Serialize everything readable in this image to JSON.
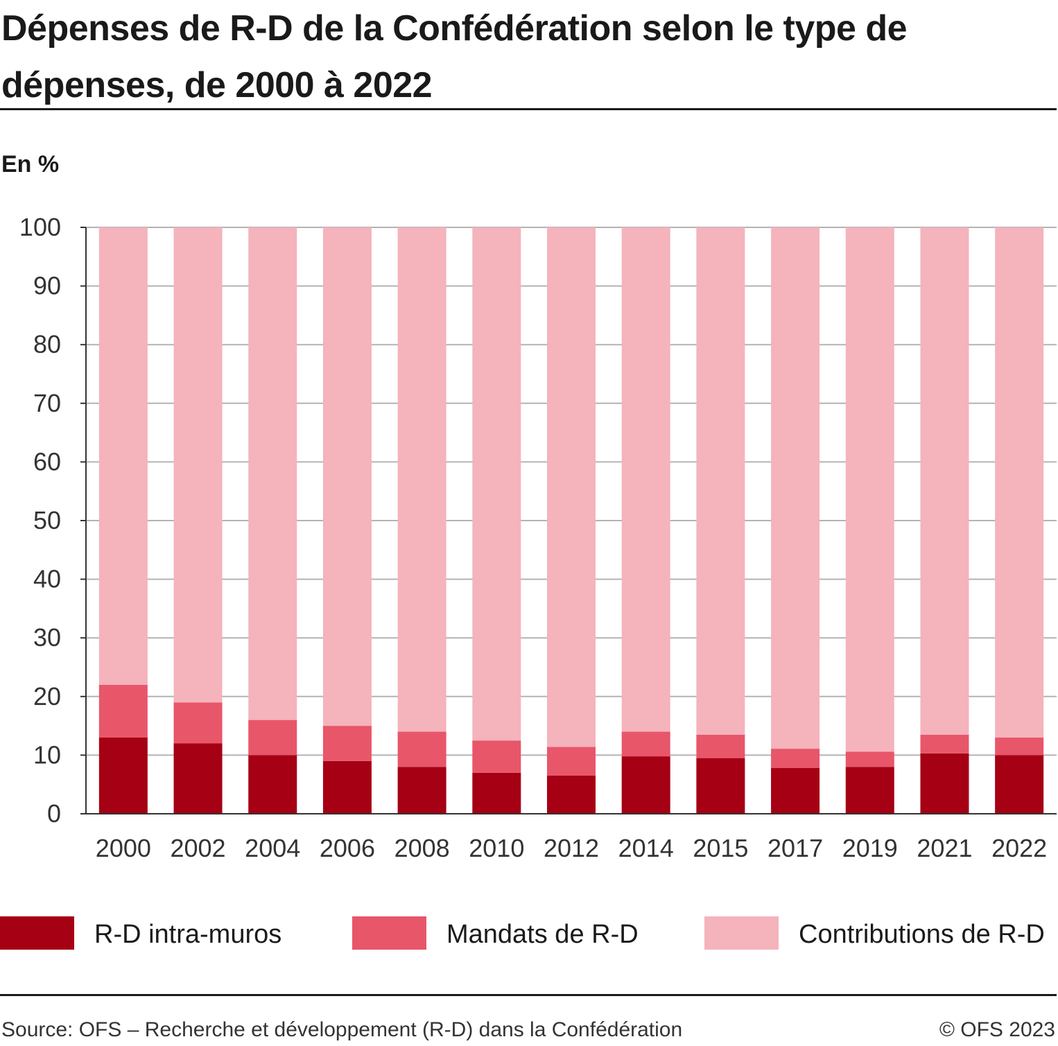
{
  "title": "Dépenses de R-D de la Confédération selon le type de dépenses, de 2000 à 2022",
  "unit_label": "En %",
  "source": "Source: OFS – Recherche et développement (R-D) dans la Confédération",
  "copyright": "© OFS 2023",
  "colors": {
    "intra": "#a50014",
    "mandats": "#e8566a",
    "contributions": "#f5b3bc",
    "axis": "#333333",
    "grid": "#b3b3b3"
  },
  "legend": [
    {
      "label": "R-D intra-muros",
      "color": "#a50014"
    },
    {
      "label": "Mandats de R-D",
      "color": "#e8566a"
    },
    {
      "label": "Contributions de R-D",
      "color": "#f5b3bc"
    }
  ],
  "chart_data": {
    "type": "bar",
    "stacked": true,
    "categories": [
      "2000",
      "2002",
      "2004",
      "2006",
      "2008",
      "2010",
      "2012",
      "2014",
      "2015",
      "2017",
      "2019",
      "2021",
      "2022"
    ],
    "series": [
      {
        "name": "R-D intra-muros",
        "values": [
          13.0,
          12.0,
          10.0,
          9.0,
          8.0,
          7.0,
          6.5,
          9.8,
          9.5,
          7.8,
          8.0,
          10.3,
          10.0
        ]
      },
      {
        "name": "Mandats de R-D",
        "values": [
          9.0,
          7.0,
          6.0,
          6.0,
          6.0,
          5.5,
          4.9,
          4.2,
          4.0,
          3.3,
          2.6,
          3.2,
          3.0
        ]
      },
      {
        "name": "Contributions de R-D",
        "values": [
          78.0,
          81.0,
          84.0,
          85.0,
          86.0,
          87.5,
          88.6,
          86.0,
          86.5,
          88.9,
          89.4,
          86.5,
          87.0
        ]
      }
    ],
    "ylim": [
      0,
      100
    ],
    "yticks": [
      0,
      10,
      20,
      30,
      40,
      50,
      60,
      70,
      80,
      90,
      100
    ],
    "ylabel": "En %",
    "grid": true,
    "legend_position": "bottom"
  }
}
